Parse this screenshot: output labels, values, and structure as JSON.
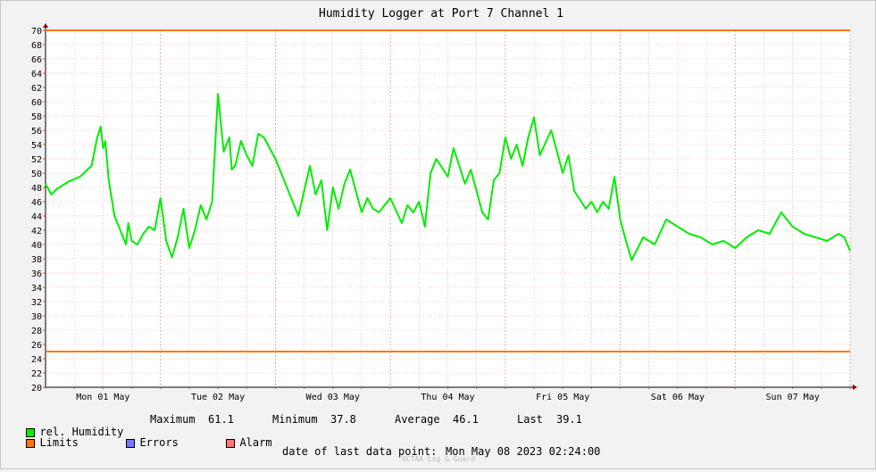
{
  "chart_data": {
    "type": "line",
    "title": "Humidity Logger at Port 7 Channel 1",
    "ylim": [
      20,
      70
    ],
    "y_ticks": [
      20,
      22,
      24,
      26,
      28,
      30,
      32,
      34,
      36,
      38,
      40,
      42,
      44,
      46,
      48,
      50,
      52,
      54,
      56,
      58,
      60,
      62,
      64,
      66,
      68,
      70
    ],
    "x_tick_labels": [
      "Mon 01 May",
      "Tue 02 May",
      "Wed 03 May",
      "Thu 04 May",
      "Fri 05 May",
      "Sat 06 May",
      "Sun 07 May"
    ],
    "xlim": [
      0,
      7
    ],
    "grid": true,
    "limits": [
      25,
      70
    ],
    "series": [
      {
        "name": "rel. Humidity",
        "color": "#00ee00",
        "x": [
          0.0,
          0.05,
          0.1,
          0.2,
          0.3,
          0.4,
          0.45,
          0.48,
          0.5,
          0.52,
          0.55,
          0.6,
          0.65,
          0.7,
          0.72,
          0.75,
          0.8,
          0.85,
          0.9,
          0.95,
          1.0,
          1.05,
          1.1,
          1.15,
          1.2,
          1.25,
          1.3,
          1.35,
          1.4,
          1.45,
          1.5,
          1.55,
          1.6,
          1.62,
          1.65,
          1.7,
          1.75,
          1.8,
          1.85,
          1.9,
          2.0,
          2.1,
          2.2,
          2.3,
          2.35,
          2.4,
          2.45,
          2.5,
          2.55,
          2.6,
          2.65,
          2.7,
          2.75,
          2.8,
          2.85,
          2.9,
          3.0,
          3.1,
          3.15,
          3.2,
          3.25,
          3.3,
          3.35,
          3.4,
          3.5,
          3.55,
          3.6,
          3.65,
          3.7,
          3.8,
          3.85,
          3.9,
          3.95,
          4.0,
          4.05,
          4.1,
          4.15,
          4.2,
          4.25,
          4.3,
          4.4,
          4.5,
          4.55,
          4.6,
          4.7,
          4.75,
          4.8,
          4.85,
          4.9,
          4.95,
          5.0,
          5.05,
          5.1,
          5.2,
          5.3,
          5.4,
          5.5,
          5.6,
          5.7,
          5.8,
          5.9,
          6.0,
          6.1,
          6.2,
          6.3,
          6.4,
          6.5,
          6.6,
          6.7,
          6.8,
          6.9,
          6.95,
          7.0
        ],
        "values": [
          48.5,
          47.0,
          47.8,
          48.8,
          49.5,
          51.0,
          55.0,
          56.5,
          53.5,
          54.5,
          49.0,
          44.0,
          42.0,
          40.0,
          43.0,
          40.5,
          40.0,
          41.5,
          42.5,
          42.0,
          46.5,
          40.5,
          38.2,
          41.0,
          45.0,
          39.5,
          42.0,
          45.5,
          43.5,
          46.0,
          61.1,
          53.0,
          55.0,
          50.5,
          51.0,
          54.5,
          52.5,
          51.0,
          55.5,
          55.0,
          52.0,
          48.0,
          44.0,
          51.0,
          47.0,
          49.0,
          42.0,
          48.0,
          45.0,
          48.5,
          50.5,
          47.5,
          44.5,
          46.5,
          45.0,
          44.5,
          46.5,
          43.0,
          45.5,
          44.5,
          46.0,
          42.5,
          50.0,
          52.0,
          49.5,
          53.5,
          51.0,
          48.5,
          50.5,
          44.5,
          43.5,
          49.0,
          50.0,
          55.0,
          52.0,
          54.0,
          51.0,
          55.0,
          57.8,
          52.5,
          56.0,
          50.0,
          52.5,
          47.5,
          45.0,
          46.0,
          44.5,
          46.0,
          45.0,
          49.5,
          43.5,
          40.5,
          37.8,
          41.0,
          40.0,
          43.5,
          42.5,
          41.5,
          41.0,
          40.0,
          40.5,
          39.5,
          41.0,
          42.0,
          41.5,
          44.5,
          42.5,
          41.5,
          41.0,
          40.5,
          41.5,
          41.0,
          39.1
        ]
      },
      {
        "name": "Limits",
        "color": "#ff7700"
      },
      {
        "name": "Errors",
        "color": "#7777ff"
      },
      {
        "name": "Alarm",
        "color": "#ff7777"
      }
    ]
  },
  "stats": {
    "maximum_label": "Maximum",
    "maximum_value": "61.1",
    "minimum_label": "Minimum",
    "minimum_value": "37.8",
    "average_label": "Average",
    "average_value": "46.1",
    "last_label": "Last",
    "last_value": "39.1"
  },
  "footer": {
    "last_point_label": "date of last data point:",
    "last_point_value": "Mon May 08 2023 02:24:00",
    "watermark": "OCTAA Log & Guard"
  }
}
